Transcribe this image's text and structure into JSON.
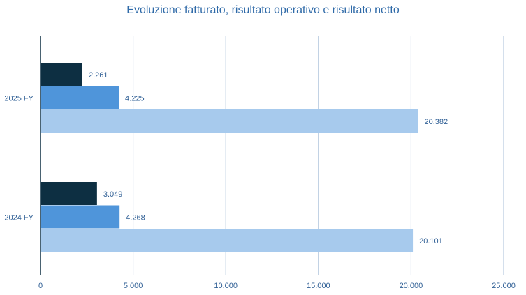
{
  "chart_data": {
    "type": "bar",
    "orientation": "horizontal",
    "title": "Evoluzione fatturato, risultato operativo e risultato netto",
    "categories": [
      "2025 FY",
      "2024 FY"
    ],
    "series": [
      {
        "values": [
          2261,
          3049
        ],
        "labels": [
          "2.261",
          "3.049"
        ],
        "color": "#0d2f42"
      },
      {
        "values": [
          4225,
          4268
        ],
        "labels": [
          "4.225",
          "4.268"
        ],
        "color": "#4f95da"
      },
      {
        "values": [
          20382,
          20101
        ],
        "labels": [
          "20.382",
          "20.101"
        ],
        "color": "#a7caed"
      }
    ],
    "xlim": [
      0,
      25000
    ],
    "xticks": [
      0,
      5000,
      10000,
      15000,
      20000,
      25000
    ],
    "xtick_labels": [
      "0",
      "5.000",
      "10.000",
      "15.000",
      "20.000",
      "25.000"
    ],
    "grid": true,
    "legend": "none",
    "text_color": "#2f5f95",
    "grid_color": "#a9bfd8"
  }
}
